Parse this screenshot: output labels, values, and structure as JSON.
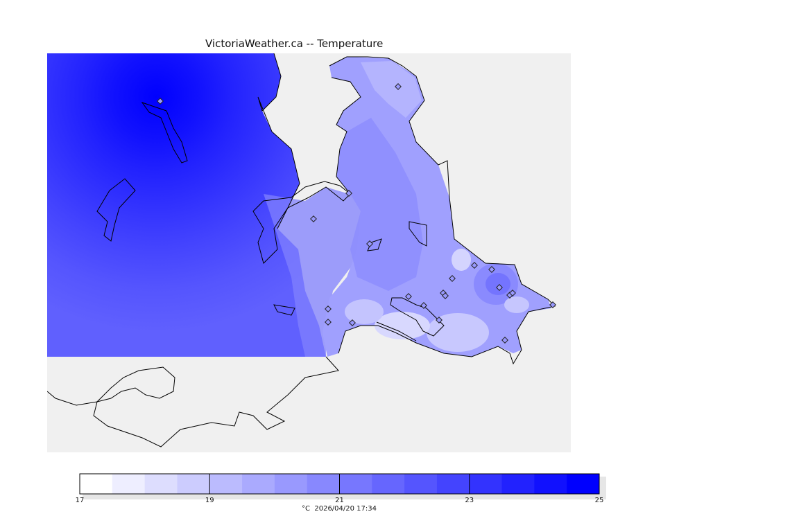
{
  "title": "VictoriaWeather.ca -- Temperature",
  "legend": {
    "min": 17,
    "max": 25,
    "step": 0.5,
    "colors": [
      "#ffffff",
      "#eeeeff",
      "#ddddfe",
      "#ccccfe",
      "#bbbbfe",
      "#aaaafe",
      "#9999fe",
      "#8888fe",
      "#7777fe",
      "#6666fe",
      "#5555fe",
      "#4444fe",
      "#3333fe",
      "#2222fe",
      "#1111fe",
      "#0000fe"
    ],
    "ticks": [
      17,
      19,
      21,
      23,
      25
    ],
    "unit_label": "°C",
    "timestamp": "2026/04/20 17:34"
  },
  "colors": {
    "land": "#f0f0f0",
    "coastline": "#000000",
    "cold_edge": "#ffffff",
    "warm_core": "#0000ff"
  }
}
